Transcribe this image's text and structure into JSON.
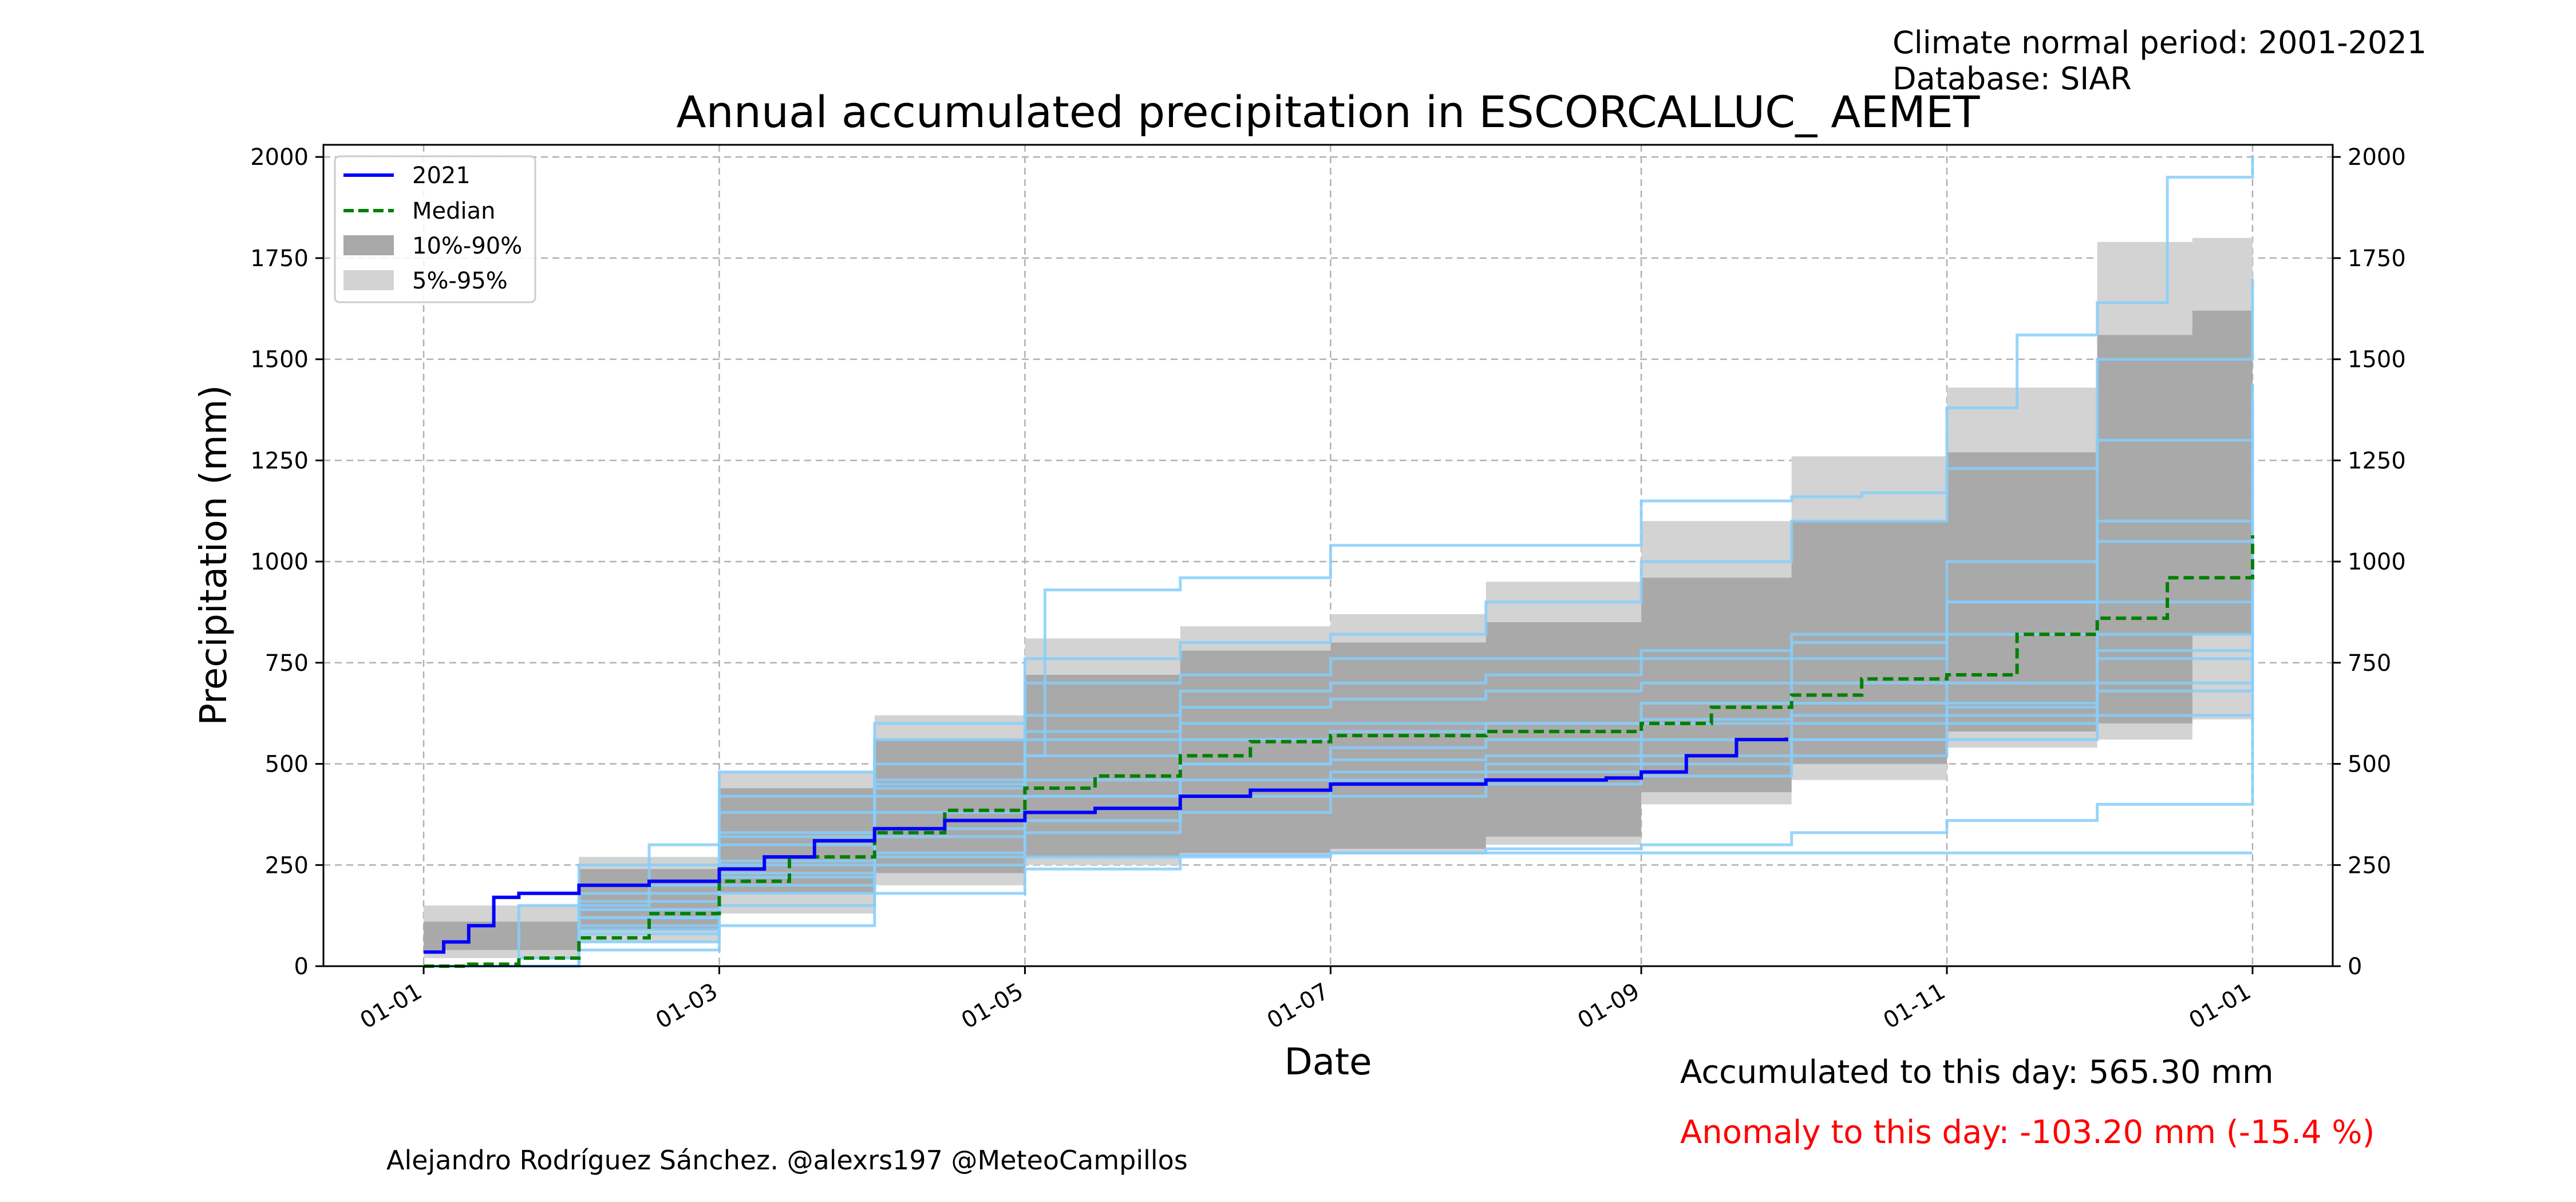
{
  "info": {
    "climate_period": "Climate normal period: 2001-2021",
    "database": "Database: SIAR"
  },
  "footer": {
    "accumulated": "Accumulated to this day: 565.30 mm",
    "anomaly": "Anomaly to this day: -103.20 mm (-15.4 %)",
    "credit": "Alejandro Rodríguez Sánchez. @alexrs197 @MeteoCampillos"
  },
  "colors": {
    "current_year": "#0000ff",
    "median": "#008000",
    "band_10_90": "#a9a9a9",
    "band_5_95": "#d3d3d3",
    "historical_years": "#87cefa"
  },
  "chart_data": {
    "type": "line",
    "title": "Annual accumulated precipitation in ESCORCALLUC_ AEMET",
    "xlabel": "Date",
    "ylabel": "Precipitation (mm)",
    "x_range": [
      "2021-01-01",
      "2022-01-01"
    ],
    "xlim": [
      "2020-12-12",
      "2022-01-17"
    ],
    "ylim": [
      0,
      2030
    ],
    "yticks": [
      0,
      250,
      500,
      750,
      1000,
      1250,
      1500,
      1750,
      2000
    ],
    "x_ticks": [
      {
        "date": "2021-01-01",
        "label": "01-01"
      },
      {
        "date": "2021-03-01",
        "label": "01-03"
      },
      {
        "date": "2021-05-01",
        "label": "01-05"
      },
      {
        "date": "2021-07-01",
        "label": "01-07"
      },
      {
        "date": "2021-09-01",
        "label": "01-09"
      },
      {
        "date": "2021-11-01",
        "label": "01-11"
      },
      {
        "date": "2022-01-01",
        "label": "01-01"
      }
    ],
    "grid": true,
    "secondary_y_axis": true,
    "legend": {
      "position": "top-left",
      "entries": [
        {
          "label": "2021",
          "style": "line"
        },
        {
          "label": "Median",
          "style": "dashed"
        },
        {
          "label": "10%-90%",
          "style": "patch-dark"
        },
        {
          "label": "5%-95%",
          "style": "patch-light"
        }
      ]
    },
    "band_5_95": {
      "x": [
        "2021-01-01",
        "2021-02-01",
        "2021-03-01",
        "2021-04-01",
        "2021-05-01",
        "2021-06-01",
        "2021-07-01",
        "2021-08-01",
        "2021-09-01",
        "2021-10-01",
        "2021-11-01",
        "2021-12-01",
        "2021-12-20",
        "2022-01-01"
      ],
      "lower": [
        0,
        20,
        60,
        130,
        200,
        250,
        270,
        280,
        300,
        400,
        460,
        540,
        560,
        610
      ],
      "upper": [
        150,
        270,
        480,
        620,
        810,
        840,
        870,
        950,
        1100,
        1260,
        1430,
        1790,
        1800,
        1810
      ]
    },
    "band_10_90": {
      "x": [
        "2021-01-01",
        "2021-02-01",
        "2021-03-01",
        "2021-04-01",
        "2021-05-01",
        "2021-06-01",
        "2021-07-01",
        "2021-08-01",
        "2021-09-01",
        "2021-10-01",
        "2021-11-01",
        "2021-12-01",
        "2021-12-20",
        "2022-01-01"
      ],
      "lower": [
        0,
        40,
        90,
        180,
        230,
        270,
        280,
        290,
        320,
        430,
        500,
        580,
        600,
        820
      ],
      "upper": [
        110,
        240,
        440,
        560,
        720,
        780,
        800,
        850,
        960,
        1100,
        1270,
        1560,
        1620,
        1710
      ]
    },
    "median": {
      "x": [
        "2021-01-01",
        "2021-01-10",
        "2021-01-20",
        "2021-02-01",
        "2021-02-15",
        "2021-03-01",
        "2021-03-15",
        "2021-04-01",
        "2021-04-15",
        "2021-05-01",
        "2021-05-15",
        "2021-06-01",
        "2021-06-15",
        "2021-07-01",
        "2021-08-01",
        "2021-08-25",
        "2021-09-01",
        "2021-09-15",
        "2021-10-01",
        "2021-10-15",
        "2021-11-01",
        "2021-11-15",
        "2021-12-01",
        "2021-12-15",
        "2022-01-01"
      ],
      "values": [
        0,
        5,
        20,
        70,
        130,
        210,
        270,
        330,
        385,
        440,
        470,
        520,
        555,
        570,
        580,
        580,
        600,
        640,
        670,
        710,
        720,
        820,
        860,
        960,
        1065
      ]
    },
    "series": [
      {
        "name": "2021",
        "x": [
          "2021-01-01",
          "2021-01-05",
          "2021-01-10",
          "2021-01-15",
          "2021-01-20",
          "2021-02-01",
          "2021-02-15",
          "2021-03-01",
          "2021-03-10",
          "2021-03-20",
          "2021-04-01",
          "2021-04-15",
          "2021-05-01",
          "2021-05-15",
          "2021-06-01",
          "2021-06-15",
          "2021-07-01",
          "2021-08-01",
          "2021-08-25",
          "2021-09-01",
          "2021-09-10",
          "2021-09-20",
          "2021-09-30"
        ],
        "values": [
          35,
          60,
          100,
          170,
          180,
          200,
          210,
          240,
          270,
          310,
          340,
          360,
          380,
          390,
          420,
          435,
          450,
          460,
          465,
          480,
          520,
          560,
          565.3
        ]
      }
    ],
    "historical_years": [
      {
        "x": [
          "2021-01-01",
          "2021-01-20",
          "2021-02-15",
          "2021-03-01",
          "2021-04-01",
          "2021-05-01",
          "2021-05-05",
          "2021-06-01",
          "2021-07-01",
          "2021-08-01",
          "2021-09-01",
          "2021-10-01",
          "2021-10-15",
          "2021-11-01",
          "2021-11-15",
          "2021-12-01",
          "2021-12-15",
          "2022-01-01"
        ],
        "values": [
          0,
          150,
          300,
          330,
          450,
          520,
          930,
          960,
          1040,
          1040,
          1150,
          1160,
          1170,
          1380,
          1560,
          1640,
          1950,
          2005
        ]
      },
      {
        "x": [
          "2021-01-01",
          "2021-02-01",
          "2021-03-01",
          "2021-04-01",
          "2021-05-01",
          "2021-06-01",
          "2021-07-01",
          "2021-08-01",
          "2021-09-01",
          "2021-10-01",
          "2021-11-01",
          "2021-12-01",
          "2022-01-01"
        ],
        "values": [
          0,
          250,
          480,
          560,
          700,
          720,
          760,
          760,
          780,
          800,
          1000,
          1300,
          1440
        ]
      },
      {
        "x": [
          "2021-01-01",
          "2021-02-01",
          "2021-03-01",
          "2021-04-01",
          "2021-05-01",
          "2021-06-01",
          "2021-07-01",
          "2021-08-01",
          "2021-09-01",
          "2021-10-01",
          "2021-11-01",
          "2021-12-01",
          "2022-01-01"
        ],
        "values": [
          0,
          180,
          380,
          500,
          620,
          680,
          700,
          720,
          760,
          820,
          900,
          1100,
          1400
        ]
      },
      {
        "x": [
          "2021-01-01",
          "2021-02-01",
          "2021-03-01",
          "2021-04-01",
          "2021-05-01",
          "2021-06-01",
          "2021-07-01",
          "2021-08-01",
          "2021-09-01",
          "2021-10-01",
          "2021-11-01",
          "2021-12-01",
          "2022-01-01"
        ],
        "values": [
          0,
          120,
          260,
          420,
          580,
          640,
          660,
          680,
          700,
          760,
          820,
          900,
          1150
        ]
      },
      {
        "x": [
          "2021-01-01",
          "2021-02-01",
          "2021-03-01",
          "2021-04-01",
          "2021-05-01",
          "2021-06-01",
          "2021-07-01",
          "2021-08-01",
          "2021-09-01",
          "2021-10-01",
          "2021-11-01",
          "2021-12-01",
          "2022-01-01"
        ],
        "values": [
          0,
          90,
          200,
          320,
          420,
          500,
          540,
          560,
          600,
          650,
          700,
          820,
          1000
        ]
      },
      {
        "x": [
          "2021-01-01",
          "2021-02-01",
          "2021-03-01",
          "2021-04-01",
          "2021-05-01",
          "2021-06-01",
          "2021-07-01",
          "2021-08-01",
          "2021-09-01",
          "2021-10-01",
          "2021-11-01",
          "2021-12-01",
          "2022-01-01"
        ],
        "values": [
          0,
          60,
          150,
          250,
          330,
          380,
          420,
          450,
          470,
          520,
          560,
          700,
          880
        ]
      },
      {
        "x": [
          "2021-01-01",
          "2021-02-01",
          "2021-03-01",
          "2021-04-01",
          "2021-05-01",
          "2021-06-01",
          "2021-07-01",
          "2021-08-01",
          "2021-09-01",
          "2021-10-01",
          "2021-11-01",
          "2021-12-01",
          "2022-01-01"
        ],
        "values": [
          0,
          40,
          100,
          180,
          240,
          270,
          280,
          290,
          300,
          330,
          360,
          400,
          860
        ]
      },
      {
        "x": [
          "2021-01-01",
          "2021-02-01",
          "2021-03-01",
          "2021-04-01",
          "2021-05-01",
          "2021-06-01",
          "2021-07-01",
          "2021-08-01",
          "2021-09-01",
          "2021-10-01",
          "2021-11-01",
          "2021-12-01",
          "2022-01-01"
        ],
        "values": [
          0,
          200,
          420,
          600,
          760,
          800,
          820,
          900,
          1000,
          1100,
          1230,
          1500,
          1700
        ]
      },
      {
        "x": [
          "2021-01-01",
          "2021-02-01",
          "2021-03-01",
          "2021-04-01",
          "2021-05-01",
          "2021-06-01",
          "2021-07-01",
          "2021-08-01",
          "2021-09-01",
          "2021-10-01",
          "2021-11-01",
          "2021-12-01",
          "2022-01-01"
        ],
        "values": [
          0,
          140,
          300,
          460,
          520,
          560,
          580,
          600,
          650,
          700,
          900,
          1050,
          1100
        ]
      },
      {
        "x": [
          "2021-01-01",
          "2021-02-01",
          "2021-03-01",
          "2021-04-01",
          "2021-05-01",
          "2021-06-01",
          "2021-07-01",
          "2021-08-01",
          "2021-09-01",
          "2021-10-01",
          "2021-11-01",
          "2021-12-01",
          "2022-01-01"
        ],
        "values": [
          0,
          100,
          230,
          380,
          460,
          500,
          510,
          520,
          560,
          600,
          650,
          780,
          960
        ]
      },
      {
        "x": [
          "2021-01-01",
          "2021-01-20",
          "2021-02-01",
          "2021-03-01",
          "2021-04-01",
          "2021-05-01",
          "2021-06-01",
          "2021-07-01",
          "2021-08-01",
          "2021-09-01",
          "2021-10-01",
          "2021-11-01",
          "2021-12-01",
          "2022-01-01"
        ],
        "values": [
          0,
          20,
          140,
          250,
          270,
          270,
          275,
          280,
          280,
          280,
          280,
          280,
          280,
          280
        ]
      },
      {
        "x": [
          "2021-01-01",
          "2021-02-01",
          "2021-03-01",
          "2021-04-01",
          "2021-05-01",
          "2021-06-01",
          "2021-07-01",
          "2021-08-01",
          "2021-09-01",
          "2021-10-01",
          "2021-11-01",
          "2021-12-01",
          "2022-01-01"
        ],
        "values": [
          0,
          160,
          320,
          440,
          560,
          600,
          600,
          600,
          610,
          620,
          620,
          620,
          625
        ]
      },
      {
        "x": [
          "2021-01-01",
          "2021-02-01",
          "2021-03-01",
          "2021-04-01",
          "2021-05-01",
          "2021-06-01",
          "2021-07-01",
          "2021-08-01",
          "2021-09-01",
          "2021-10-01",
          "2021-11-01",
          "2021-12-01",
          "2022-01-01"
        ],
        "values": [
          0,
          80,
          180,
          280,
          360,
          420,
          460,
          480,
          500,
          560,
          640,
          760,
          840
        ]
      },
      {
        "x": [
          "2021-01-01",
          "2021-02-01",
          "2021-03-01",
          "2021-04-01",
          "2021-05-01",
          "2021-06-01",
          "2021-07-01",
          "2021-08-01",
          "2021-09-01",
          "2021-10-01",
          "2021-11-01",
          "2021-12-01",
          "2022-01-01"
        ],
        "values": [
          0,
          120,
          220,
          340,
          420,
          460,
          480,
          500,
          520,
          560,
          600,
          680,
          1300
        ]
      }
    ]
  }
}
